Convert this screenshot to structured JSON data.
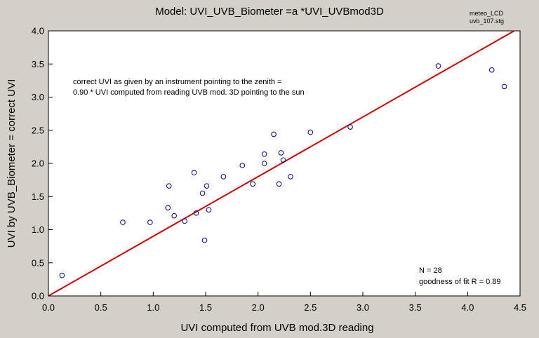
{
  "header": {
    "title": "Model: UVI_UVB_Biometer =a *UVI_UVBmod3D",
    "note_line1": "meteo_LCD",
    "note_line2": "uvb_107.stg"
  },
  "colors": {
    "background": "#d4d0c8",
    "plot_area": "#ffffff",
    "fit_line": "#cc0000",
    "marker": "#000080"
  },
  "chart_data": {
    "type": "scatter",
    "xlabel": "UVI computed from UVB mod.3D reading",
    "ylabel": "UVI by UVB_Biometer = correct UVI",
    "xlim": [
      0.0,
      4.5
    ],
    "ylim": [
      0.0,
      4.0
    ],
    "xticks": [
      "0.0",
      "0.5",
      "1.0",
      "1.5",
      "2.0",
      "2.5",
      "3.0",
      "3.5",
      "4.0",
      "4.5"
    ],
    "yticks": [
      "0.0",
      "0.5",
      "1.0",
      "1.5",
      "2.0",
      "2.5",
      "3.0",
      "3.5",
      "4.0"
    ],
    "grid": false,
    "annotation_lines": [
      "correct UVI as given by an instrument pointing to the zenith =",
      "0.90 * UVI computed from reading UVB mod. 3D pointing to the sun"
    ],
    "stats_lines": [
      "N = 28",
      "goodness of fit R = 0.89"
    ],
    "fit_line": {
      "slope": 0.9,
      "intercept": 0
    },
    "points": [
      {
        "x": 0.13,
        "y": 0.31
      },
      {
        "x": 0.71,
        "y": 1.11
      },
      {
        "x": 0.97,
        "y": 1.11
      },
      {
        "x": 1.14,
        "y": 1.33
      },
      {
        "x": 1.15,
        "y": 1.66
      },
      {
        "x": 1.2,
        "y": 1.21
      },
      {
        "x": 1.3,
        "y": 1.13
      },
      {
        "x": 1.39,
        "y": 1.86
      },
      {
        "x": 1.41,
        "y": 1.25
      },
      {
        "x": 1.47,
        "y": 1.55
      },
      {
        "x": 1.49,
        "y": 0.84
      },
      {
        "x": 1.51,
        "y": 1.66
      },
      {
        "x": 1.53,
        "y": 1.3
      },
      {
        "x": 1.67,
        "y": 1.8
      },
      {
        "x": 1.85,
        "y": 1.97
      },
      {
        "x": 1.95,
        "y": 1.69
      },
      {
        "x": 2.06,
        "y": 2.14
      },
      {
        "x": 2.06,
        "y": 2.0
      },
      {
        "x": 2.15,
        "y": 2.44
      },
      {
        "x": 2.2,
        "y": 1.69
      },
      {
        "x": 2.22,
        "y": 2.16
      },
      {
        "x": 2.24,
        "y": 2.05
      },
      {
        "x": 2.31,
        "y": 1.8
      },
      {
        "x": 2.5,
        "y": 2.47
      },
      {
        "x": 2.88,
        "y": 2.55
      },
      {
        "x": 3.72,
        "y": 3.47
      },
      {
        "x": 4.23,
        "y": 3.41
      },
      {
        "x": 4.35,
        "y": 3.16
      }
    ]
  }
}
